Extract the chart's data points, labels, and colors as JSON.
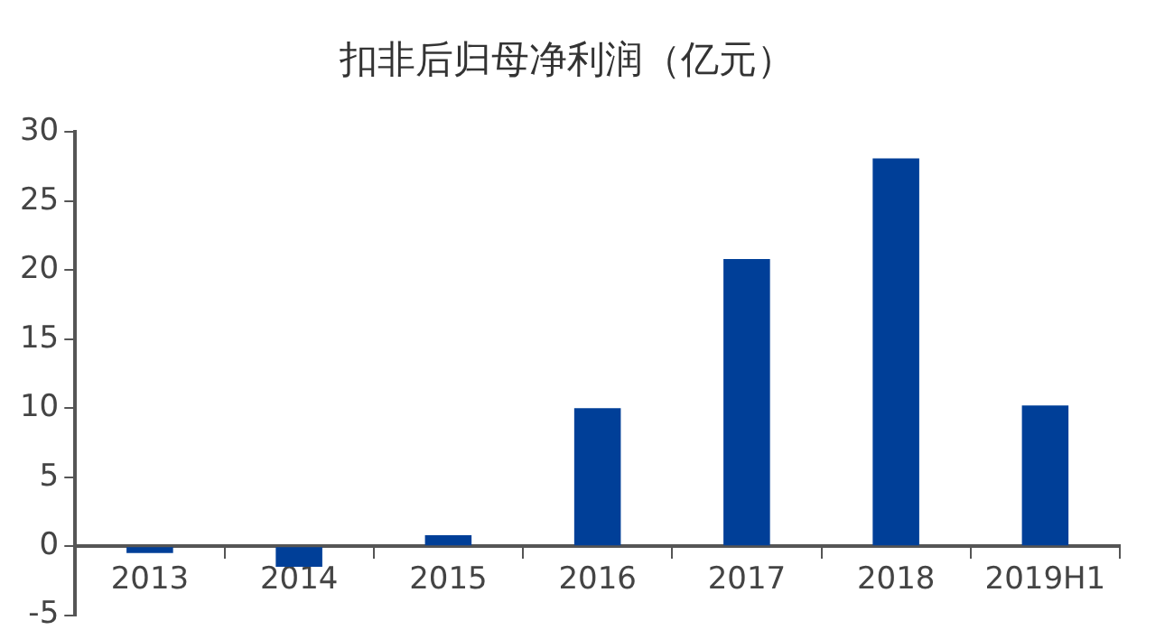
{
  "chart_data": {
    "type": "bar",
    "title": "扣非后归母净利润（亿元）",
    "categories": [
      "2013",
      "2014",
      "2015",
      "2016",
      "2017",
      "2018",
      "2019H1"
    ],
    "values": [
      -0.5,
      -1.5,
      0.8,
      10.0,
      20.8,
      28.1,
      10.2
    ],
    "color": "#003f98",
    "ylim": [
      -5,
      30
    ],
    "yticks": [
      -5,
      0,
      5,
      10,
      15,
      20,
      25,
      30
    ],
    "grid": false,
    "legend": false
  }
}
